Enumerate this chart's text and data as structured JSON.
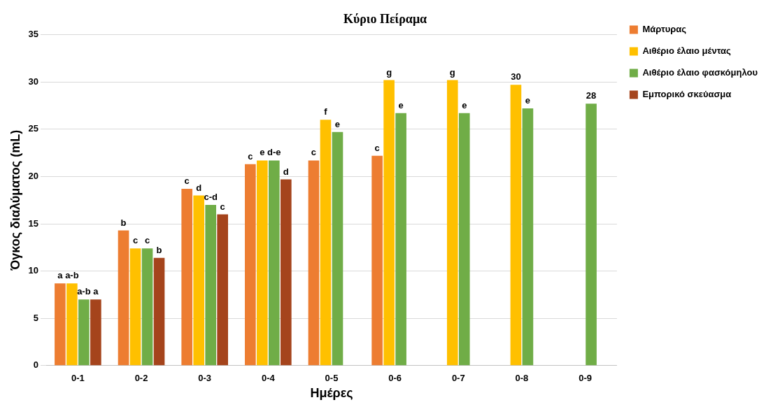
{
  "chart_data": {
    "type": "bar",
    "title": "Κύριο Πείραμα",
    "xlabel": "Ημέρες",
    "ylabel": "Όγκος διαλύματος (mL)",
    "categories": [
      "0-1",
      "0-2",
      "0-3",
      "0-4",
      "0-5",
      "0-6",
      "0-7",
      "0-8",
      "0-9"
    ],
    "series": [
      {
        "name": "Μάρτυρας",
        "color": "#ed7d31",
        "values": [
          8.7,
          14.3,
          18.7,
          21.3,
          21.7,
          22.2,
          null,
          null,
          null
        ],
        "value_labels": [
          "a",
          "b",
          "c",
          "c",
          "c",
          "c",
          null,
          null,
          null
        ]
      },
      {
        "name": "Αιθέριο έλαιο μέντας",
        "color": "#ffc000",
        "values": [
          8.7,
          12.4,
          18.0,
          21.7,
          26.0,
          30.2,
          30.2,
          29.7,
          null
        ],
        "value_labels": [
          "a-b",
          "c",
          "d",
          "e",
          "f",
          "g",
          "g",
          "30",
          null
        ]
      },
      {
        "name": "Αιθέριο έλαιο φασκόμηλου",
        "color": "#70ad47",
        "values": [
          7.0,
          12.4,
          17.0,
          21.7,
          24.7,
          26.7,
          26.7,
          27.2,
          27.7
        ],
        "value_labels": [
          "a-b",
          "c",
          "c-d",
          "d-e",
          "e",
          "e",
          "e",
          "e",
          "28"
        ]
      },
      {
        "name": "Εμπορικό σκεύασμα",
        "color": "#a5441c",
        "values": [
          7.0,
          11.4,
          16.0,
          19.7,
          null,
          null,
          null,
          null,
          null
        ],
        "value_labels": [
          "a",
          "b",
          "c",
          "d",
          null,
          null,
          null,
          null,
          null
        ]
      }
    ],
    "ylim": [
      0,
      35
    ],
    "yticks": [
      0,
      5,
      10,
      15,
      20,
      25,
      30,
      35
    ],
    "grid": "y",
    "legend": "top right"
  }
}
